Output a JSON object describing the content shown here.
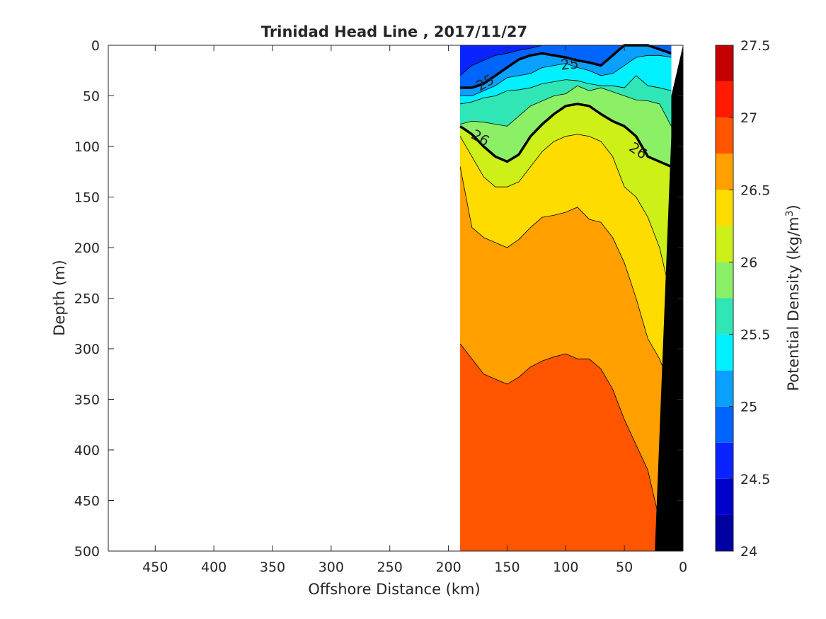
{
  "chart_data": {
    "type": "heatmap",
    "subtype": "filled-contour-section",
    "title": "Trinidad Head Line , 2017/11/27",
    "xlabel": "Offshore Distance (km)",
    "ylabel": "Depth (m)",
    "x_axis": {
      "lim": [
        490,
        0
      ],
      "reversed": true,
      "ticks": [
        450,
        400,
        350,
        300,
        250,
        200,
        150,
        100,
        50,
        0
      ]
    },
    "y_axis": {
      "lim": [
        0,
        500
      ],
      "reversed": true,
      "ticks": [
        0,
        50,
        100,
        150,
        200,
        250,
        300,
        350,
        400,
        450,
        500
      ]
    },
    "colorbar": {
      "label": "Potential Density (kg/m",
      "label_sup": "3",
      "label_close": ")",
      "lim": [
        24,
        27.5
      ],
      "ticks": [
        24,
        24.5,
        25,
        25.5,
        26,
        26.5,
        27,
        27.5
      ],
      "level_step": 0.25,
      "colors": [
        "#0000a3",
        "#0000cd",
        "#0a23ff",
        "#0064ff",
        "#0aa0ff",
        "#00f0ff",
        "#30e6b4",
        "#8cf066",
        "#ccf018",
        "#ffdc00",
        "#ffa000",
        "#ff5500",
        "#ff1a00",
        "#c40000"
      ]
    },
    "section_extent_km": [
      190,
      10
    ],
    "stations_x_km": [
      190,
      180,
      170,
      160,
      150,
      140,
      130,
      120,
      110,
      100,
      90,
      80,
      70,
      60,
      50,
      40,
      30,
      20,
      10
    ],
    "isopycnal_depths_m": [
      {
        "level": 24.75,
        "depth": [
          30,
          20,
          15,
          10,
          8,
          5,
          3,
          0,
          0,
          0,
          0,
          0,
          0,
          0,
          0,
          0,
          0,
          0,
          0
        ]
      },
      {
        "level": 25.0,
        "depth": [
          42,
          42,
          38,
          30,
          22,
          14,
          10,
          8,
          10,
          12,
          15,
          17,
          20,
          10,
          0,
          0,
          0,
          4,
          8
        ]
      },
      {
        "level": 25.25,
        "depth": [
          50,
          50,
          45,
          40,
          32,
          30,
          28,
          22,
          20,
          18,
          22,
          25,
          30,
          28,
          20,
          12,
          10,
          10,
          12
        ]
      },
      {
        "level": 25.5,
        "depth": [
          58,
          56,
          52,
          50,
          45,
          44,
          42,
          38,
          36,
          34,
          35,
          38,
          40,
          40,
          42,
          30,
          40,
          42,
          45
        ]
      },
      {
        "level": 25.75,
        "depth": [
          78,
          75,
          76,
          78,
          80,
          70,
          60,
          55,
          50,
          48,
          40,
          45,
          42,
          46,
          50,
          54,
          55,
          58,
          80
        ]
      },
      {
        "level": 26.0,
        "depth": [
          80,
          88,
          100,
          110,
          115,
          108,
          90,
          78,
          68,
          60,
          58,
          60,
          68,
          75,
          80,
          90,
          110,
          115,
          120
        ]
      },
      {
        "level": 26.25,
        "depth": [
          90,
          110,
          130,
          140,
          140,
          135,
          120,
          105,
          95,
          90,
          88,
          90,
          95,
          110,
          140,
          150,
          170,
          200,
          250
        ]
      },
      {
        "level": 26.5,
        "depth": [
          120,
          180,
          190,
          195,
          200,
          192,
          180,
          170,
          168,
          165,
          160,
          172,
          175,
          190,
          215,
          250,
          290,
          310,
          340
        ]
      },
      {
        "level": 26.75,
        "depth": [
          295,
          310,
          325,
          330,
          335,
          328,
          318,
          312,
          308,
          305,
          310,
          310,
          320,
          340,
          370,
          395,
          420,
          470,
          500
        ]
      }
    ],
    "highlight_contours": [
      25,
      26
    ],
    "contour_labels": [
      "25",
      "25",
      "26",
      "26"
    ],
    "bottom_mask": {
      "color": "#000000"
    }
  }
}
